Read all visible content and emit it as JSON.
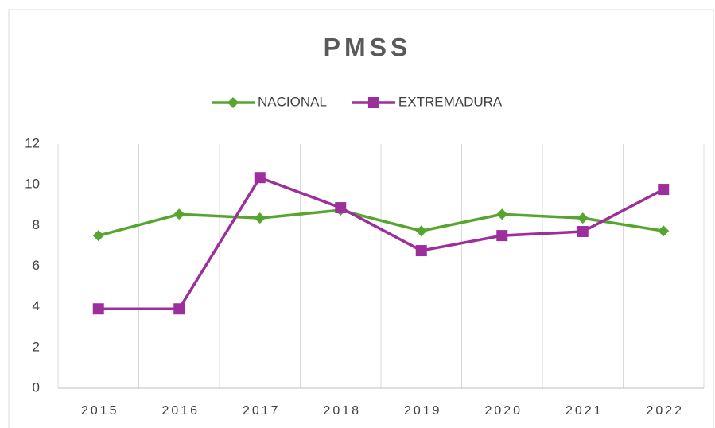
{
  "chart_data": {
    "type": "line",
    "title": "PMSS",
    "categories": [
      "2015",
      "2016",
      "2017",
      "2018",
      "2019",
      "2020",
      "2021",
      "2022"
    ],
    "series": [
      {
        "name": "NACIONAL",
        "color": "#55a52e",
        "marker": "diamond",
        "values": [
          7.5,
          8.55,
          8.36,
          8.75,
          7.73,
          8.55,
          8.36,
          7.73
        ]
      },
      {
        "name": "EXTREMADURA",
        "color": "#9c2f9b",
        "marker": "square",
        "values": [
          3.9,
          3.9,
          10.35,
          8.87,
          6.76,
          7.5,
          7.7,
          9.77
        ]
      }
    ],
    "ylim": [
      0,
      12
    ],
    "yticks": [
      0,
      2,
      4,
      6,
      8,
      10,
      12
    ],
    "grid": "x",
    "legend": "top"
  }
}
